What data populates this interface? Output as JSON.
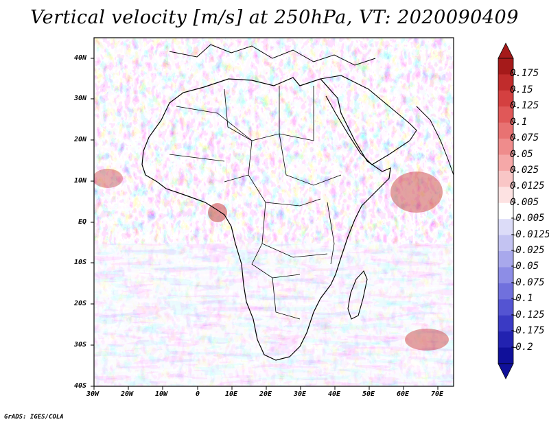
{
  "title": "Vertical velocity [m/s] at 250hPa, VT: 2020090409",
  "credit": "GrADS: IGES/COLA",
  "map": {
    "region": "Africa",
    "lat_labels": [
      "40N",
      "30N",
      "20N",
      "10N",
      "EQ",
      "10S",
      "20S",
      "30S",
      "40S"
    ],
    "lon_labels": [
      "30W",
      "20W",
      "10W",
      "0",
      "10E",
      "20E",
      "30E",
      "40E",
      "50E",
      "60E",
      "70E"
    ]
  },
  "colorbar": {
    "levels": [
      "0.175",
      "0.15",
      "0.125",
      "0.1",
      "0.075",
      "0.05",
      "0.025",
      "0.0125",
      "0.005",
      "-0.005",
      "-0.0125",
      "-0.025",
      "-0.05",
      "-0.075",
      "-0.1",
      "-0.125",
      "-0.175",
      "-0.2"
    ],
    "colors": [
      "#a51a1a",
      "#c02c2c",
      "#d44040",
      "#e05858",
      "#e87272",
      "#ef8c8c",
      "#f5a8a8",
      "#f9c6c6",
      "#fde2e2",
      "#ffffff",
      "#dcdcf8",
      "#c3c3f2",
      "#a8a8ec",
      "#8d8de6",
      "#7070dd",
      "#5454d2",
      "#3a3ac4",
      "#2222b0",
      "#10109a"
    ]
  }
}
